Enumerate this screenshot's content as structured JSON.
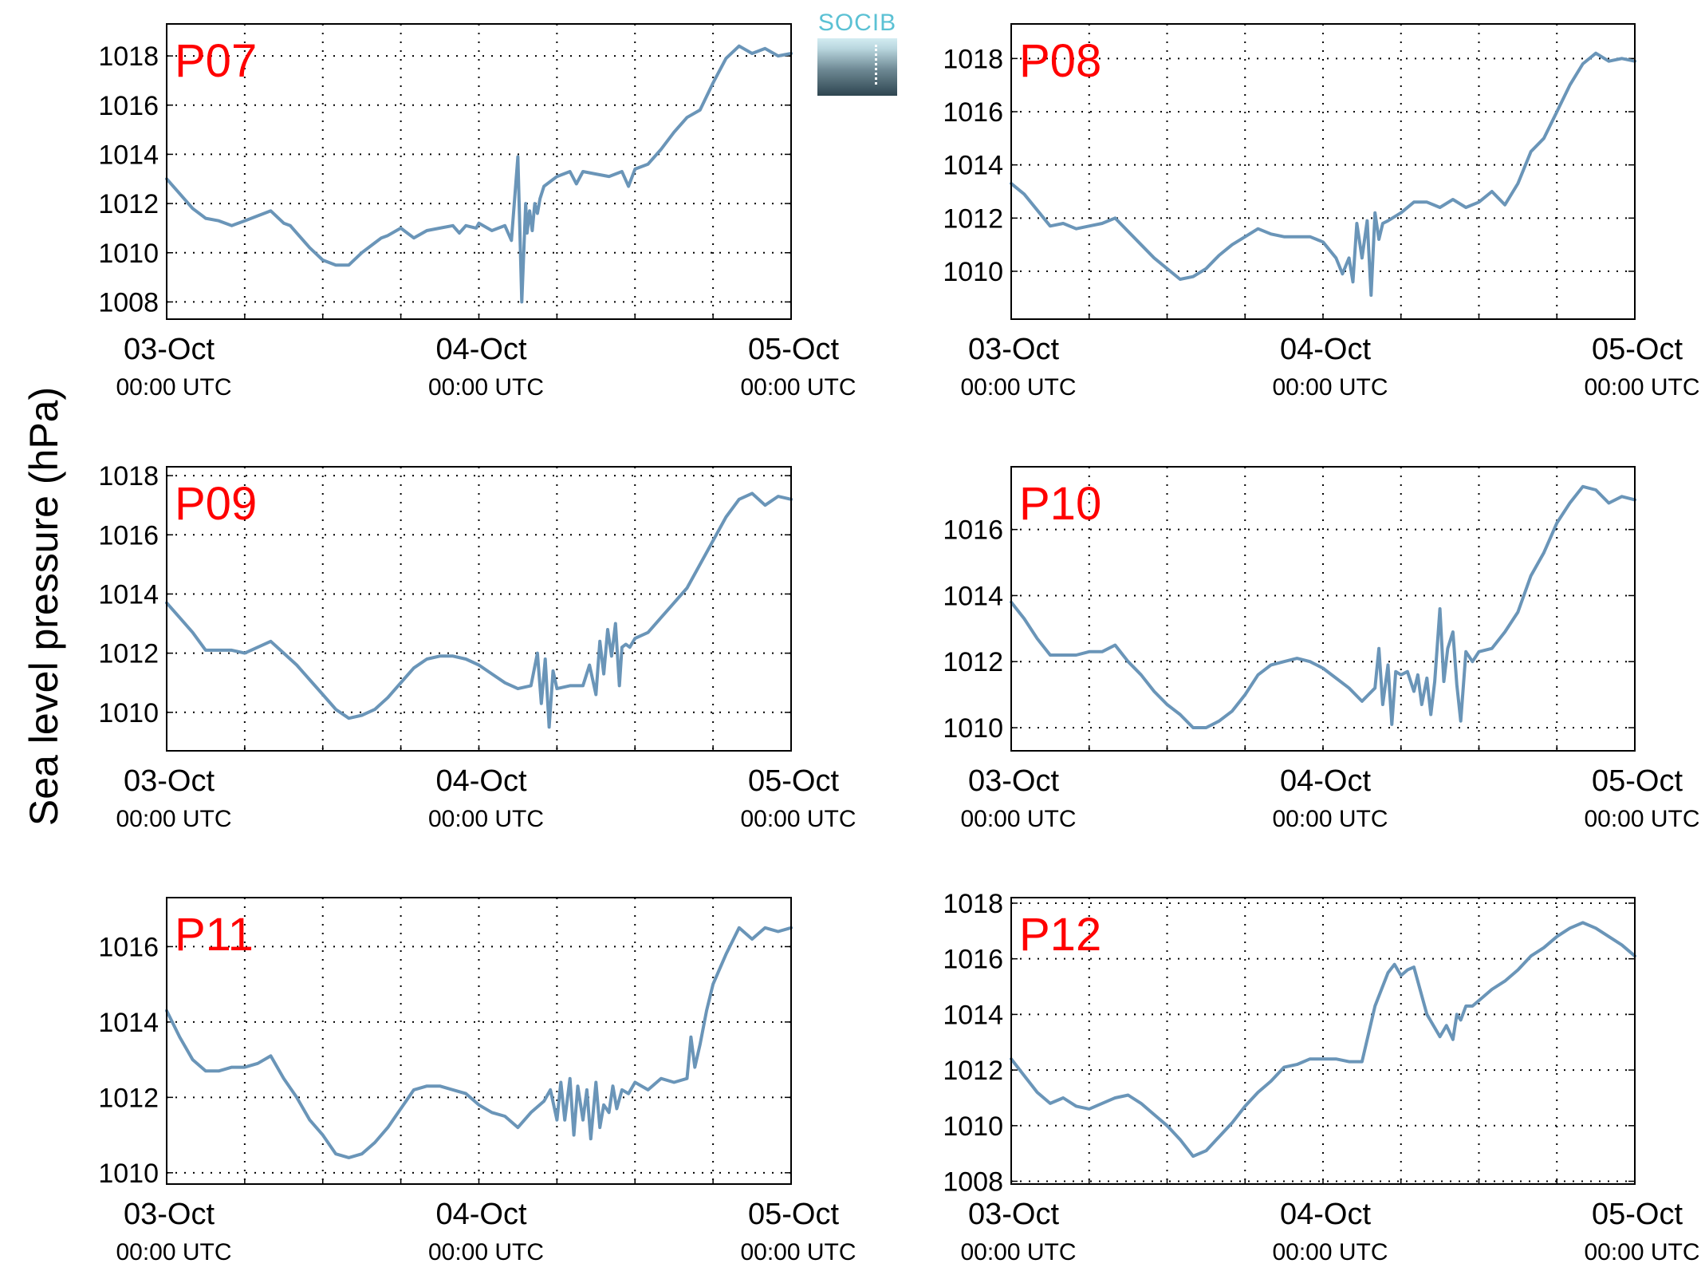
{
  "ylabel": "Sea level pressure (hPa)",
  "logo": {
    "text": "SOCIB"
  },
  "colors": {
    "line": "#6a95b8",
    "panel_label": "#ff0000",
    "axis": "#000000",
    "grid": "#000000"
  },
  "chart_data": [
    {
      "type": "line",
      "label": "P07",
      "x_ticks": [
        {
          "date": "03-Oct",
          "time": "00:00 UTC"
        },
        {
          "date": "04-Oct",
          "time": "00:00 UTC"
        },
        {
          "date": "05-Oct",
          "time": "00:00 UTC"
        }
      ],
      "xlim_hours": [
        0,
        48
      ],
      "ylim": [
        1007.3,
        1019.3
      ],
      "yticks": [
        1008,
        1010,
        1012,
        1014,
        1016,
        1018
      ],
      "grid": true,
      "series": [
        {
          "x": [
            0,
            1,
            2,
            3,
            4,
            5,
            6,
            7,
            8,
            9,
            9.5,
            10,
            11,
            12,
            13,
            14,
            15,
            16,
            16.5,
            17,
            18,
            19,
            20,
            21,
            22,
            22.5,
            23,
            23.8,
            24,
            25,
            26,
            26.5,
            27,
            27.3,
            27.6,
            27.7,
            27.9,
            28.1,
            28.3,
            28.5,
            28.7,
            29,
            30,
            31,
            31.5,
            32,
            33,
            34,
            35,
            35.5,
            36,
            37,
            38,
            39,
            40,
            41,
            42,
            43,
            44,
            45,
            46,
            47,
            48
          ],
          "y": [
            1013.0,
            1012.4,
            1011.8,
            1011.4,
            1011.3,
            1011.1,
            1011.3,
            1011.5,
            1011.7,
            1011.2,
            1011.1,
            1010.8,
            1010.2,
            1009.7,
            1009.5,
            1009.5,
            1010.0,
            1010.4,
            1010.6,
            1010.7,
            1011.0,
            1010.6,
            1010.9,
            1011.0,
            1011.1,
            1010.8,
            1011.1,
            1011.0,
            1011.2,
            1010.9,
            1011.1,
            1010.5,
            1013.9,
            1008.0,
            1012.0,
            1010.8,
            1011.7,
            1010.9,
            1012.0,
            1011.6,
            1012.2,
            1012.7,
            1013.1,
            1013.3,
            1012.8,
            1013.3,
            1013.2,
            1013.1,
            1013.3,
            1012.7,
            1013.4,
            1013.6,
            1014.2,
            1014.9,
            1015.5,
            1015.8,
            1016.9,
            1017.9,
            1018.4,
            1018.1,
            1018.3,
            1018.0,
            1018.1
          ]
        }
      ]
    },
    {
      "type": "line",
      "label": "P08",
      "x_ticks": [
        {
          "date": "03-Oct",
          "time": "00:00 UTC"
        },
        {
          "date": "04-Oct",
          "time": "00:00 UTC"
        },
        {
          "date": "05-Oct",
          "time": "00:00 UTC"
        }
      ],
      "xlim_hours": [
        0,
        48
      ],
      "ylim": [
        1008.2,
        1019.3
      ],
      "yticks": [
        1010,
        1012,
        1014,
        1016,
        1018
      ],
      "grid": true,
      "series": [
        {
          "x": [
            0,
            1,
            2,
            3,
            4,
            5,
            6,
            7,
            8,
            9,
            10,
            11,
            12,
            13,
            14,
            15,
            16,
            17,
            18,
            19,
            20,
            21,
            22,
            23,
            24,
            25,
            25.5,
            26,
            26.3,
            26.6,
            27,
            27.4,
            27.7,
            28,
            28.3,
            28.6,
            29,
            30,
            31,
            32,
            33,
            34,
            35,
            36,
            37,
            38,
            39,
            40,
            41,
            42,
            43,
            44,
            45,
            46,
            47,
            48
          ],
          "y": [
            1013.3,
            1012.9,
            1012.3,
            1011.7,
            1011.8,
            1011.6,
            1011.7,
            1011.8,
            1012.0,
            1011.5,
            1011.0,
            1010.5,
            1010.1,
            1009.7,
            1009.8,
            1010.1,
            1010.6,
            1011.0,
            1011.3,
            1011.6,
            1011.4,
            1011.3,
            1011.3,
            1011.3,
            1011.1,
            1010.5,
            1009.9,
            1010.5,
            1009.6,
            1011.8,
            1010.5,
            1011.9,
            1009.1,
            1012.2,
            1011.2,
            1011.8,
            1011.9,
            1012.2,
            1012.6,
            1012.6,
            1012.4,
            1012.7,
            1012.4,
            1012.6,
            1013.0,
            1012.5,
            1013.3,
            1014.5,
            1015.0,
            1016.0,
            1017.0,
            1017.8,
            1018.2,
            1017.9,
            1018.0,
            1017.9
          ]
        }
      ]
    },
    {
      "type": "line",
      "label": "P09",
      "x_ticks": [
        {
          "date": "03-Oct",
          "time": "00:00 UTC"
        },
        {
          "date": "04-Oct",
          "time": "00:00 UTC"
        },
        {
          "date": "05-Oct",
          "time": "00:00 UTC"
        }
      ],
      "xlim_hours": [
        0,
        48
      ],
      "ylim": [
        1008.7,
        1018.3
      ],
      "yticks": [
        1010,
        1012,
        1014,
        1016,
        1018
      ],
      "grid": true,
      "series": [
        {
          "x": [
            0,
            1,
            2,
            3,
            4,
            5,
            6,
            7,
            8,
            9,
            10,
            11,
            12,
            13,
            14,
            15,
            16,
            17,
            18,
            19,
            20,
            21,
            22,
            23,
            24,
            25,
            26,
            27,
            28,
            28.5,
            28.8,
            29.1,
            29.4,
            29.7,
            30,
            31,
            32,
            32.5,
            33,
            33.3,
            33.6,
            33.9,
            34.2,
            34.5,
            34.8,
            35,
            35.3,
            35.6,
            36,
            37,
            38,
            39,
            40,
            41,
            42,
            43,
            44,
            45,
            46,
            47,
            48
          ],
          "y": [
            1013.7,
            1013.2,
            1012.7,
            1012.1,
            1012.1,
            1012.1,
            1012.0,
            1012.2,
            1012.4,
            1012.0,
            1011.6,
            1011.1,
            1010.6,
            1010.1,
            1009.8,
            1009.9,
            1010.1,
            1010.5,
            1011.0,
            1011.5,
            1011.8,
            1011.9,
            1011.9,
            1011.8,
            1011.6,
            1011.3,
            1011.0,
            1010.8,
            1010.9,
            1012.0,
            1010.3,
            1011.8,
            1009.5,
            1011.4,
            1010.8,
            1010.9,
            1010.9,
            1011.6,
            1010.6,
            1012.4,
            1011.3,
            1012.8,
            1011.9,
            1013.0,
            1010.9,
            1012.2,
            1012.3,
            1012.2,
            1012.5,
            1012.7,
            1013.2,
            1013.7,
            1014.2,
            1015.0,
            1015.8,
            1016.6,
            1017.2,
            1017.4,
            1017.0,
            1017.3,
            1017.2
          ]
        }
      ]
    },
    {
      "type": "line",
      "label": "P10",
      "x_ticks": [
        {
          "date": "03-Oct",
          "time": "00:00 UTC"
        },
        {
          "date": "04-Oct",
          "time": "00:00 UTC"
        },
        {
          "date": "05-Oct",
          "time": "00:00 UTC"
        }
      ],
      "xlim_hours": [
        0,
        48
      ],
      "ylim": [
        1009.3,
        1017.9
      ],
      "yticks": [
        1010,
        1012,
        1014,
        1016
      ],
      "grid": true,
      "series": [
        {
          "x": [
            0,
            1,
            2,
            3,
            4,
            5,
            6,
            7,
            8,
            9,
            10,
            11,
            12,
            13,
            14,
            15,
            16,
            17,
            18,
            19,
            20,
            21,
            22,
            23,
            24,
            25,
            26,
            27,
            28,
            28.3,
            28.6,
            29,
            29.3,
            29.6,
            30,
            30.5,
            31,
            31.3,
            31.6,
            32,
            32.3,
            32.6,
            33,
            33.3,
            33.6,
            34,
            34.3,
            34.6,
            35,
            35.5,
            36,
            37,
            38,
            39,
            40,
            41,
            42,
            43,
            44,
            45,
            46,
            47,
            48
          ],
          "y": [
            1013.8,
            1013.3,
            1012.7,
            1012.2,
            1012.2,
            1012.2,
            1012.3,
            1012.3,
            1012.5,
            1012.0,
            1011.6,
            1011.1,
            1010.7,
            1010.4,
            1010.0,
            1010.0,
            1010.2,
            1010.5,
            1011.0,
            1011.6,
            1011.9,
            1012.0,
            1012.1,
            1012.0,
            1011.8,
            1011.5,
            1011.2,
            1010.8,
            1011.2,
            1012.4,
            1010.7,
            1011.9,
            1010.1,
            1011.7,
            1011.6,
            1011.7,
            1011.1,
            1011.6,
            1010.7,
            1011.5,
            1010.4,
            1011.4,
            1013.6,
            1011.4,
            1012.4,
            1012.9,
            1011.3,
            1010.2,
            1012.3,
            1012.0,
            1012.3,
            1012.4,
            1012.9,
            1013.5,
            1014.6,
            1015.3,
            1016.2,
            1016.8,
            1017.3,
            1017.2,
            1016.8,
            1017.0,
            1016.9
          ]
        }
      ]
    },
    {
      "type": "line",
      "label": "P11",
      "x_ticks": [
        {
          "date": "03-Oct",
          "time": "00:00 UTC"
        },
        {
          "date": "04-Oct",
          "time": "00:00 UTC"
        },
        {
          "date": "05-Oct",
          "time": "00:00 UTC"
        }
      ],
      "xlim_hours": [
        0,
        48
      ],
      "ylim": [
        1009.7,
        1017.3
      ],
      "yticks": [
        1010,
        1012,
        1014,
        1016
      ],
      "grid": true,
      "series": [
        {
          "x": [
            0,
            1,
            2,
            3,
            4,
            5,
            6,
            7,
            8,
            9,
            10,
            11,
            12,
            13,
            14,
            15,
            16,
            17,
            18,
            19,
            20,
            21,
            22,
            23,
            24,
            25,
            26,
            27,
            28,
            29,
            29.5,
            30,
            30.3,
            30.6,
            31,
            31.3,
            31.6,
            32,
            32.3,
            32.6,
            33,
            33.3,
            33.6,
            34,
            34.3,
            34.6,
            35,
            35.5,
            36,
            37,
            38,
            39,
            40,
            40.3,
            40.6,
            41,
            41.5,
            42,
            43,
            44,
            45,
            46,
            47,
            48
          ],
          "y": [
            1014.3,
            1013.6,
            1013.0,
            1012.7,
            1012.7,
            1012.8,
            1012.8,
            1012.9,
            1013.1,
            1012.5,
            1012.0,
            1011.4,
            1011.0,
            1010.5,
            1010.4,
            1010.5,
            1010.8,
            1011.2,
            1011.7,
            1012.2,
            1012.3,
            1012.3,
            1012.2,
            1012.1,
            1011.8,
            1011.6,
            1011.5,
            1011.2,
            1011.6,
            1011.9,
            1012.2,
            1011.4,
            1012.4,
            1011.4,
            1012.5,
            1011.0,
            1012.3,
            1011.4,
            1012.2,
            1010.9,
            1012.4,
            1011.2,
            1011.8,
            1011.6,
            1012.3,
            1011.7,
            1012.2,
            1012.1,
            1012.4,
            1012.2,
            1012.5,
            1012.4,
            1012.5,
            1013.6,
            1012.8,
            1013.4,
            1014.3,
            1015.0,
            1015.8,
            1016.5,
            1016.2,
            1016.5,
            1016.4,
            1016.5
          ]
        }
      ]
    },
    {
      "type": "line",
      "label": "P12",
      "x_ticks": [
        {
          "date": "03-Oct",
          "time": "00:00 UTC"
        },
        {
          "date": "04-Oct",
          "time": "00:00 UTC"
        },
        {
          "date": "05-Oct",
          "time": "00:00 UTC"
        }
      ],
      "xlim_hours": [
        0,
        48
      ],
      "ylim": [
        1007.9,
        1018.2
      ],
      "yticks": [
        1008,
        1010,
        1012,
        1014,
        1016,
        1018
      ],
      "grid": true,
      "series": [
        {
          "x": [
            0,
            1,
            2,
            3,
            4,
            5,
            6,
            7,
            8,
            9,
            10,
            11,
            12,
            13,
            14,
            15,
            16,
            17,
            18,
            19,
            20,
            21,
            22,
            23,
            24,
            25,
            26,
            27,
            28,
            29,
            29.5,
            30,
            30.5,
            31,
            32,
            33,
            33.5,
            34,
            34.3,
            34.6,
            35,
            35.5,
            36,
            37,
            38,
            39,
            40,
            41,
            42,
            43,
            44,
            45,
            46,
            47,
            48
          ],
          "y": [
            1012.4,
            1011.8,
            1011.2,
            1010.8,
            1011.0,
            1010.7,
            1010.6,
            1010.8,
            1011.0,
            1011.1,
            1010.8,
            1010.4,
            1010.0,
            1009.5,
            1008.9,
            1009.1,
            1009.6,
            1010.1,
            1010.7,
            1011.2,
            1011.6,
            1012.1,
            1012.2,
            1012.4,
            1012.4,
            1012.4,
            1012.3,
            1012.3,
            1014.3,
            1015.5,
            1015.8,
            1015.4,
            1015.6,
            1015.7,
            1014.0,
            1013.2,
            1013.6,
            1013.1,
            1014.0,
            1013.8,
            1014.3,
            1014.3,
            1014.5,
            1014.9,
            1015.2,
            1015.6,
            1016.1,
            1016.4,
            1016.8,
            1017.1,
            1017.3,
            1017.1,
            1016.8,
            1016.5,
            1016.1
          ]
        }
      ]
    }
  ]
}
